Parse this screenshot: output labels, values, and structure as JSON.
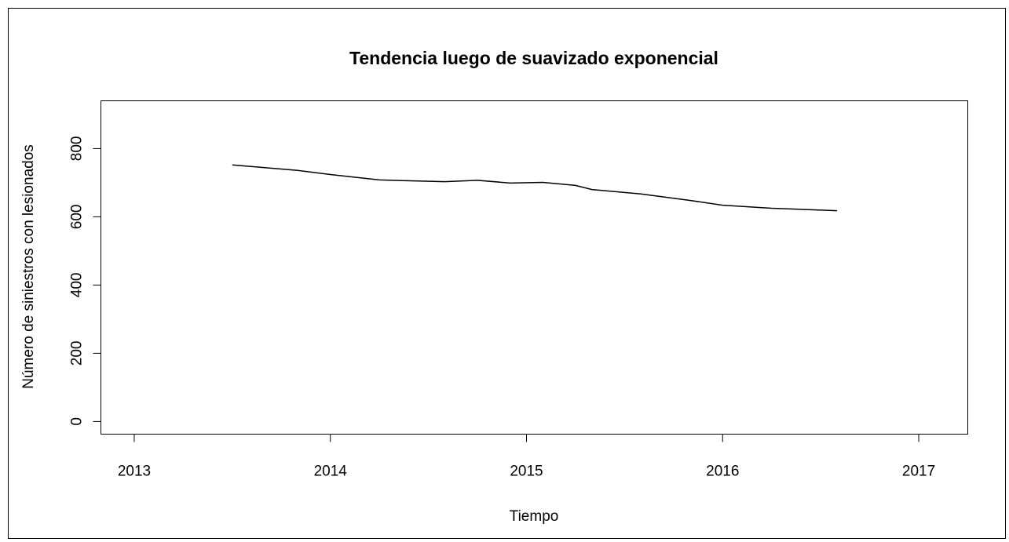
{
  "chart_data": {
    "type": "line",
    "title": "Tendencia luego de suavizado exponencial",
    "x_label": "Tiempo",
    "y_label": "Número de siniestros con lesionados",
    "x": [
      2013.5,
      2013.833,
      2014.0,
      2014.25,
      2014.583,
      2014.75,
      2014.917,
      2015.083,
      2015.25,
      2015.333,
      2015.583,
      2015.833,
      2016.0,
      2016.25,
      2016.583
    ],
    "values": [
      752,
      736,
      724,
      708,
      703,
      707,
      699,
      701,
      692,
      680,
      667,
      648,
      634,
      625,
      618
    ],
    "color": "#000000",
    "xlim": [
      2012.83,
      2017.25
    ],
    "xticks": [
      2013,
      2014,
      2015,
      2016,
      2017
    ],
    "ylim": [
      -37,
      940
    ],
    "yticks": [
      0,
      200,
      400,
      600,
      800
    ]
  }
}
